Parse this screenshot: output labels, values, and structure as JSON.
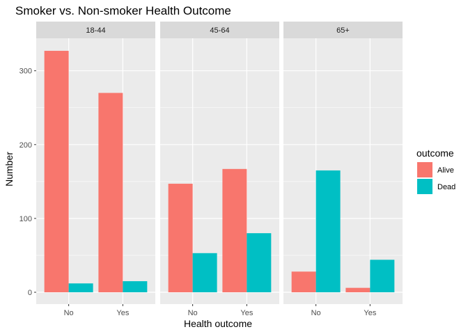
{
  "chart_data": {
    "type": "bar",
    "title": "Smoker vs. Non-smoker Health Outcome",
    "xlabel": "Health outcome",
    "ylabel": "Number",
    "ylim": [
      -16,
      344
    ],
    "yticks": [
      0,
      100,
      200,
      300
    ],
    "categories": [
      "No",
      "Yes"
    ],
    "facets": [
      {
        "label": "18-44",
        "series": [
          {
            "name": "Alive",
            "values": [
              327,
              270
            ]
          },
          {
            "name": "Dead",
            "values": [
              12,
              15
            ]
          }
        ]
      },
      {
        "label": "45-64",
        "series": [
          {
            "name": "Alive",
            "values": [
              147,
              167
            ]
          },
          {
            "name": "Dead",
            "values": [
              53,
              80
            ]
          }
        ]
      },
      {
        "label": "65+",
        "series": [
          {
            "name": "Alive",
            "values": [
              28,
              6
            ]
          },
          {
            "name": "Dead",
            "values": [
              165,
              44
            ]
          }
        ]
      }
    ],
    "legend": {
      "title": "outcome",
      "placement": "right",
      "entries": [
        "Alive",
        "Dead"
      ]
    },
    "grid": true,
    "colors": {
      "Alive": "#F8766D",
      "Dead": "#00BFC4",
      "panel_bg": "#EBEBEB",
      "strip_bg": "#D9D9D9",
      "grid_major": "#FFFFFF"
    }
  }
}
